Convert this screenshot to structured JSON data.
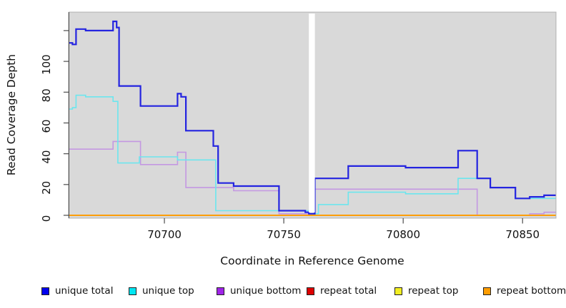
{
  "figure": {
    "xlabel": "Coordinate in Reference Genome",
    "ylabel": "Read Coverage Depth"
  },
  "chart_data": {
    "type": "line",
    "step": true,
    "title": "",
    "xlabel": "Coordinate in Reference Genome",
    "ylabel": "Read Coverage Depth",
    "xlim": [
      70660,
      70864
    ],
    "ylim": [
      0,
      132
    ],
    "x_ticks": [
      70700,
      70750,
      70800,
      70850
    ],
    "y_ticks": [
      0,
      20,
      40,
      60,
      80,
      100
    ],
    "y_ticks_unlabeled": [
      120
    ],
    "grid": false,
    "legend_position": "bottom",
    "panel_bg": "#d9d9d9",
    "gap_region_x": [
      70760.5,
      70763
    ],
    "draw_order": [
      "unique bottom",
      "repeat total",
      "repeat top",
      "repeat bottom",
      "unique top",
      "unique total"
    ],
    "series": [
      {
        "name": "unique total",
        "color": "#2424e0",
        "legend_color": "#0000ee",
        "line_width": 2.2,
        "points": [
          [
            70660,
            112
          ],
          [
            70661.5,
            111
          ],
          [
            70663,
            121
          ],
          [
            70667,
            120
          ],
          [
            70678.5,
            126
          ],
          [
            70680,
            122
          ],
          [
            70681,
            84
          ],
          [
            70690,
            71
          ],
          [
            70705.5,
            79
          ],
          [
            70707,
            77
          ],
          [
            70709,
            55
          ],
          [
            70720.5,
            45
          ],
          [
            70722.5,
            21
          ],
          [
            70729,
            19
          ],
          [
            70748,
            3
          ],
          [
            70759,
            2
          ],
          [
            70760.5,
            1
          ],
          [
            70763,
            24
          ],
          [
            70777,
            32
          ],
          [
            70801,
            31
          ],
          [
            70823,
            42
          ],
          [
            70831,
            24
          ],
          [
            70836.5,
            18
          ],
          [
            70847,
            11
          ],
          [
            70853,
            12
          ],
          [
            70859,
            13
          ],
          [
            70864,
            13
          ]
        ]
      },
      {
        "name": "unique top",
        "color": "#6ce6ee",
        "legend_color": "#00e6f2",
        "line_width": 1.6,
        "points": [
          [
            70660,
            69
          ],
          [
            70661.5,
            70
          ],
          [
            70663,
            78
          ],
          [
            70667,
            77
          ],
          [
            70678.5,
            74
          ],
          [
            70680.5,
            34
          ],
          [
            70689.5,
            38
          ],
          [
            70705.5,
            36
          ],
          [
            70721.5,
            3
          ],
          [
            70763,
            1
          ],
          [
            70764.5,
            7
          ],
          [
            70777,
            15
          ],
          [
            70801,
            14
          ],
          [
            70823,
            24
          ],
          [
            70836.5,
            18
          ],
          [
            70847,
            11
          ],
          [
            70864,
            11
          ]
        ]
      },
      {
        "name": "unique bottom",
        "color": "#c498e2",
        "legend_color": "#a024e8",
        "line_width": 1.6,
        "points": [
          [
            70660,
            43
          ],
          [
            70678.5,
            48
          ],
          [
            70690,
            33
          ],
          [
            70705.5,
            41
          ],
          [
            70709,
            18
          ],
          [
            70729,
            16
          ],
          [
            70748,
            1
          ],
          [
            70763,
            17
          ],
          [
            70831,
            0
          ],
          [
            70853,
            1
          ],
          [
            70859,
            2
          ],
          [
            70864,
            2
          ]
        ]
      },
      {
        "name": "repeat total",
        "color": "#dd0000",
        "legend_color": "#dd0000",
        "line_width": 1.6,
        "points": [
          [
            70660,
            0
          ],
          [
            70864,
            0
          ]
        ]
      },
      {
        "name": "repeat top",
        "color": "#f2ee22",
        "legend_color": "#f2ee22",
        "line_width": 1.6,
        "points": [
          [
            70660,
            0
          ],
          [
            70864,
            0
          ]
        ]
      },
      {
        "name": "repeat bottom",
        "color": "#ff9d00",
        "legend_color": "#ff9d00",
        "line_width": 1.7,
        "points": [
          [
            70660,
            0
          ],
          [
            70864,
            0
          ]
        ]
      }
    ]
  }
}
